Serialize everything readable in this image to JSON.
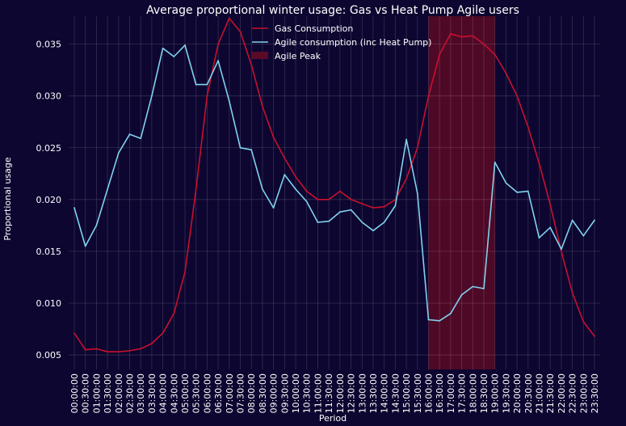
{
  "chart_data": {
    "type": "line",
    "title": "Average proportional winter usage: Gas vs Heat Pump Agile users",
    "xlabel": "Period",
    "ylabel": "Proportional usage",
    "ylim": [
      0.0036,
      0.0377
    ],
    "yticks": [
      0.005,
      0.01,
      0.015,
      0.02,
      0.025,
      0.03,
      0.035
    ],
    "ytick_labels": [
      "0.005",
      "0.010",
      "0.015",
      "0.020",
      "0.025",
      "0.030",
      "0.035"
    ],
    "grid": true,
    "legend_position": "top-center",
    "categories": [
      "00:00:00",
      "00:30:00",
      "01:00:00",
      "01:30:00",
      "02:00:00",
      "02:30:00",
      "03:00:00",
      "03:30:00",
      "04:00:00",
      "04:30:00",
      "05:00:00",
      "05:30:00",
      "06:00:00",
      "06:30:00",
      "07:00:00",
      "07:30:00",
      "08:00:00",
      "08:30:00",
      "09:00:00",
      "09:30:00",
      "10:00:00",
      "10:30:00",
      "11:00:00",
      "11:30:00",
      "12:00:00",
      "12:30:00",
      "13:00:00",
      "13:30:00",
      "14:00:00",
      "14:30:00",
      "15:00:00",
      "15:30:00",
      "16:00:00",
      "16:30:00",
      "17:00:00",
      "17:30:00",
      "18:00:00",
      "18:30:00",
      "19:00:00",
      "19:30:00",
      "20:00:00",
      "20:30:00",
      "21:00:00",
      "21:30:00",
      "22:00:00",
      "22:30:00",
      "23:00:00",
      "23:30:00"
    ],
    "series": [
      {
        "name": "Gas Consumption",
        "color": "#c8102e",
        "values": [
          0.0071,
          0.0055,
          0.0056,
          0.0053,
          0.0053,
          0.0054,
          0.0056,
          0.0061,
          0.0071,
          0.009,
          0.013,
          0.021,
          0.03,
          0.035,
          0.0375,
          0.0362,
          0.033,
          0.029,
          0.026,
          0.024,
          0.0222,
          0.0208,
          0.02,
          0.02,
          0.0208,
          0.02,
          0.0196,
          0.0192,
          0.0193,
          0.02,
          0.022,
          0.025,
          0.03,
          0.034,
          0.036,
          0.0357,
          0.0358,
          0.035,
          0.034,
          0.0322,
          0.03,
          0.027,
          0.0235,
          0.0195,
          0.015,
          0.011,
          0.0082,
          0.0068
        ]
      },
      {
        "name": "Agile consumption (inc Heat Pump)",
        "color": "#7fd3ee",
        "values": [
          0.0192,
          0.0155,
          0.0175,
          0.021,
          0.0245,
          0.0263,
          0.0259,
          0.03,
          0.0346,
          0.0338,
          0.0349,
          0.0311,
          0.0311,
          0.0334,
          0.0295,
          0.025,
          0.0248,
          0.021,
          0.0192,
          0.0224,
          0.021,
          0.0198,
          0.0178,
          0.0179,
          0.0188,
          0.019,
          0.0178,
          0.017,
          0.0178,
          0.0194,
          0.0258,
          0.0206,
          0.0084,
          0.0083,
          0.009,
          0.0108,
          0.0116,
          0.0114,
          0.0236,
          0.0216,
          0.0207,
          0.0208,
          0.0163,
          0.0173,
          0.0152,
          0.018,
          0.0165,
          0.018
        ]
      }
    ],
    "shaded_region": {
      "name": "Agile Peak",
      "from": "16:00:00",
      "to": "19:00:00",
      "color": "#5a0a26"
    }
  }
}
